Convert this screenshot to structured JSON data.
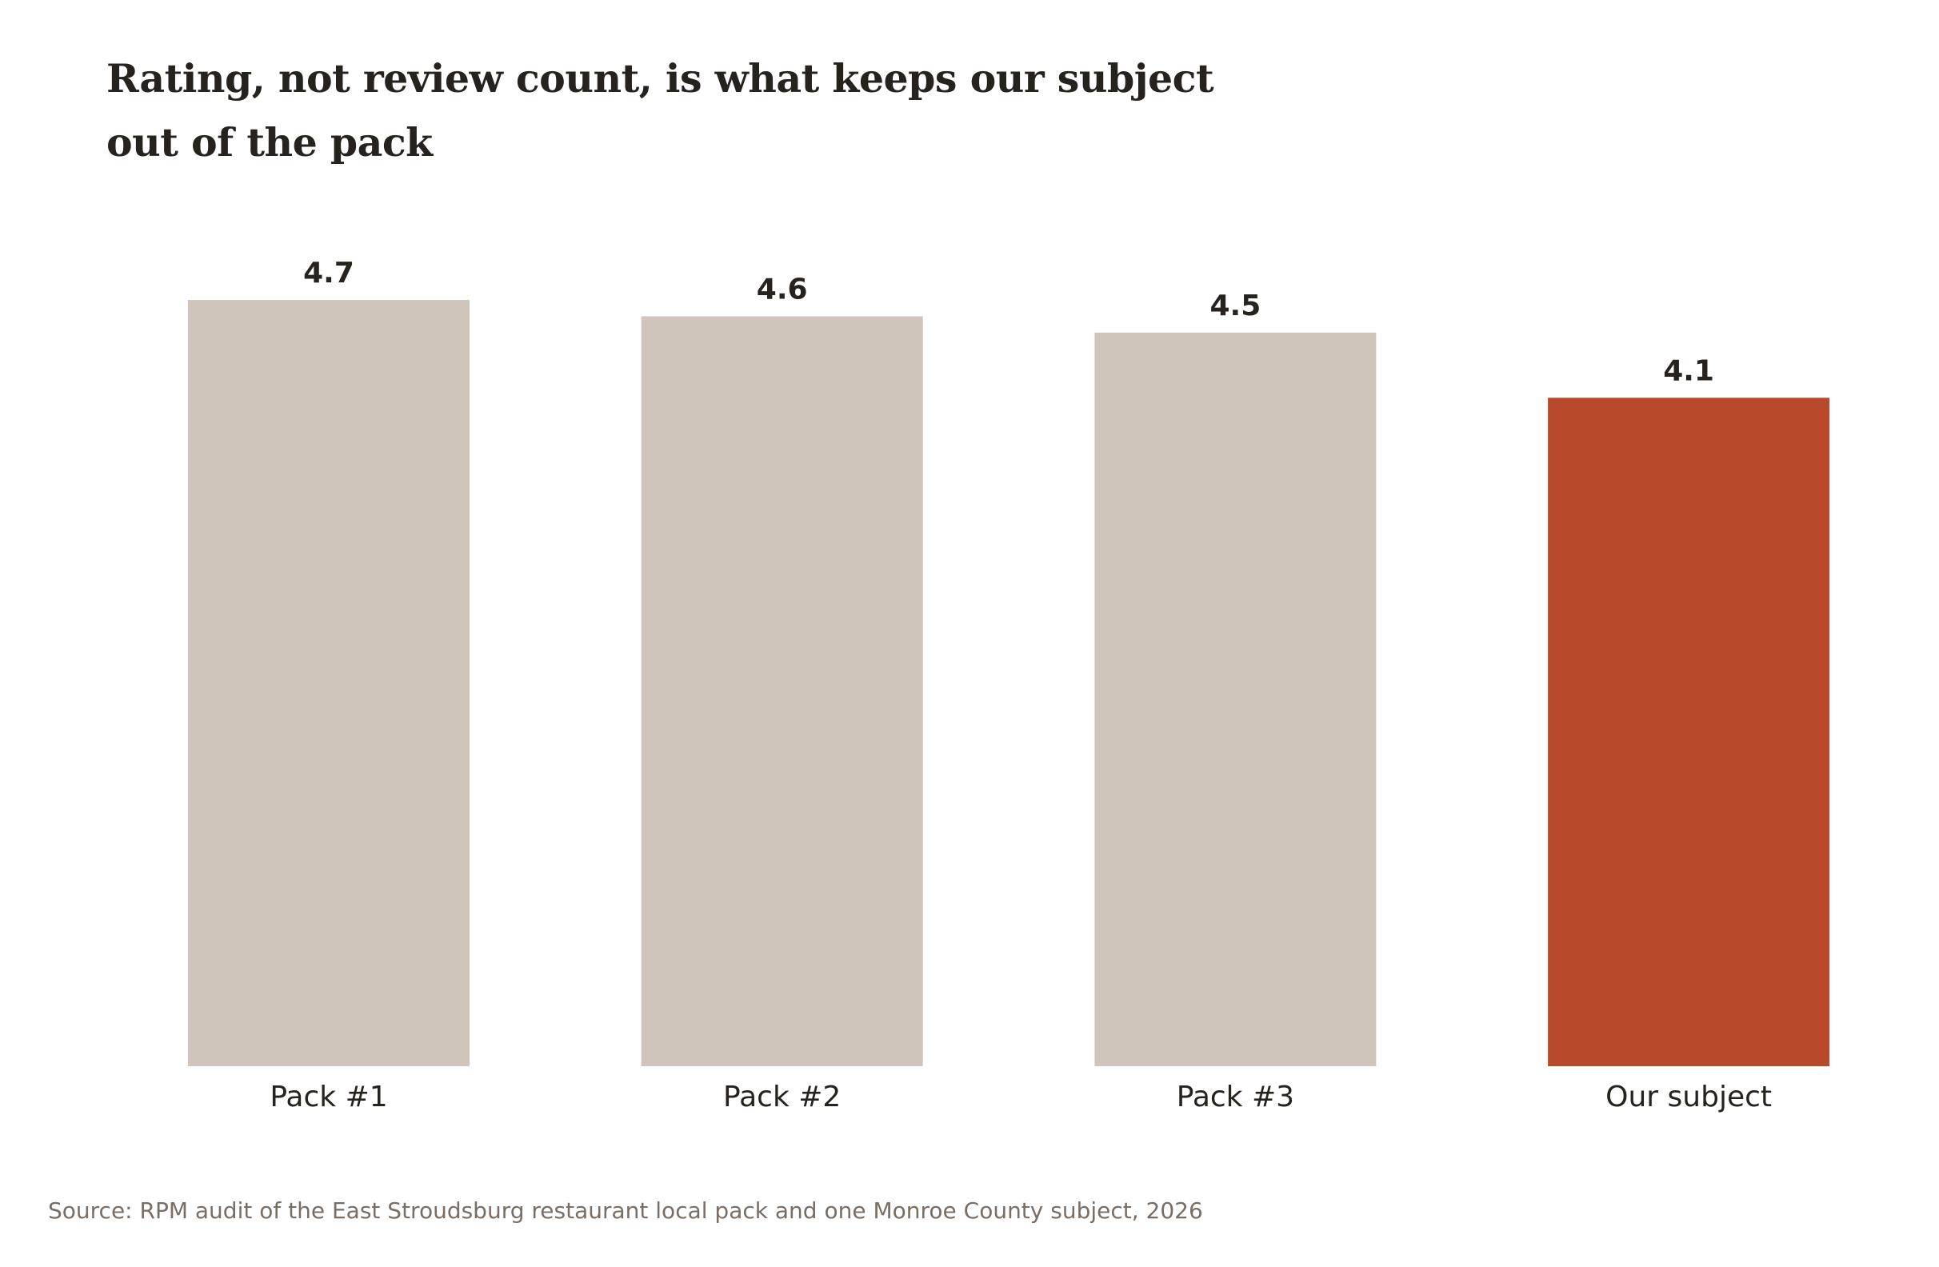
{
  "chart_data": {
    "type": "bar",
    "title": "Rating, not review count, is what keeps our subject out of the pack",
    "categories": [
      "Pack #1",
      "Pack #2",
      "Pack #3",
      "Our subject"
    ],
    "values": [
      4.7,
      4.6,
      4.5,
      4.1
    ],
    "value_labels": [
      "4.7",
      "4.6",
      "4.5",
      "4.1"
    ],
    "highlight_category": "Our subject",
    "ylim": [
      0,
      4.7
    ],
    "grid": false,
    "y_axis_visible": false,
    "xlabel": "",
    "ylabel": "",
    "colors": {
      "pack": "#d0c5ba",
      "highlight": "#b9492b",
      "text": "#26221d",
      "source": "#7a6e64"
    }
  },
  "footer": {
    "source": "Source: RPM audit of the East Stroudsburg restaurant local pack and one Monroe County subject, 2026"
  }
}
